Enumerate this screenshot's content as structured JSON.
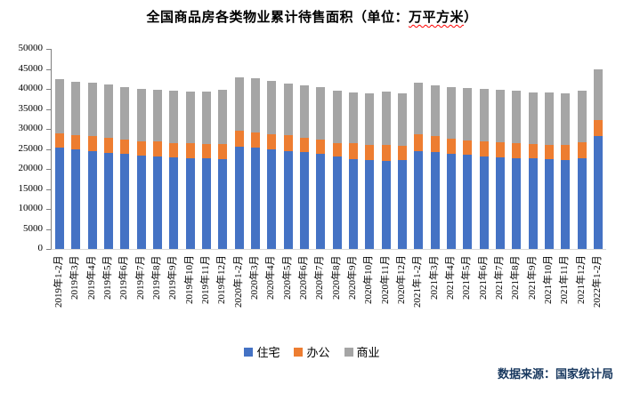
{
  "title": {
    "prefix": "全国商品房各类物业累计待售面积（单位：",
    "unit": "万平方米",
    "suffix": "）"
  },
  "source": {
    "text": "数据来源：国家统计局"
  },
  "chart_data": {
    "type": "bar",
    "stacked": true,
    "title": "全国商品房各类物业累计待售面积（单位：万平方米）",
    "xlabel": "",
    "ylabel": "",
    "ylim": [
      0,
      50000
    ],
    "ytick_step": 5000,
    "yticks": [
      0,
      5000,
      10000,
      15000,
      20000,
      25000,
      30000,
      35000,
      40000,
      45000,
      50000
    ],
    "grid": false,
    "legend_position": "bottom",
    "categories": [
      "2019年1-2月",
      "2019年3月",
      "2019年4月",
      "2019年5月",
      "2019年6月",
      "2019年7月",
      "2019年8月",
      "2019年9月",
      "2019年10月",
      "2019年11月",
      "2019年12月",
      "2020年1-2月",
      "2020年3月",
      "2020年4月",
      "2020年5月",
      "2020年6月",
      "2020年7月",
      "2020年8月",
      "2020年9月",
      "2020年10月",
      "2020年11月",
      "2020年12月",
      "2021年1-2月",
      "2021年3月",
      "2021年4月",
      "2021年5月",
      "2021年6月",
      "2021年7月",
      "2021年8月",
      "2021年9月",
      "2021年10月",
      "2021年11月",
      "2021年12月",
      "2022年1-2月"
    ],
    "series": [
      {
        "name": "住宅",
        "color": "#4472c4",
        "values": [
          25400,
          24800,
          24500,
          24100,
          23700,
          23300,
          23100,
          22900,
          22750,
          22650,
          22500,
          25600,
          25300,
          24900,
          24500,
          24150,
          23800,
          23050,
          22500,
          22300,
          22100,
          22300,
          24500,
          24200,
          23900,
          23500,
          23200,
          23000,
          22700,
          22600,
          22400,
          22200,
          22750,
          28300
        ]
      },
      {
        "name": "办公",
        "color": "#ed7d31",
        "values": [
          3600,
          3650,
          3700,
          3700,
          3700,
          3700,
          3700,
          3650,
          3650,
          3650,
          3750,
          3900,
          3900,
          3850,
          3900,
          3550,
          3500,
          3450,
          3850,
          3700,
          3900,
          3500,
          4100,
          3950,
          3700,
          3700,
          3700,
          3700,
          3700,
          3700,
          3700,
          3900,
          3850,
          3850
        ]
      },
      {
        "name": "商业",
        "color": "#a5a5a5",
        "values": [
          13500,
          13400,
          13400,
          13300,
          13100,
          13000,
          13000,
          13000,
          13000,
          13100,
          13450,
          13300,
          13400,
          13300,
          12900,
          13200,
          13100,
          13100,
          12750,
          13000,
          13300,
          13200,
          12900,
          12750,
          12800,
          13000,
          13100,
          13100,
          13200,
          12750,
          13000,
          12800,
          13050,
          12650
        ]
      }
    ]
  }
}
